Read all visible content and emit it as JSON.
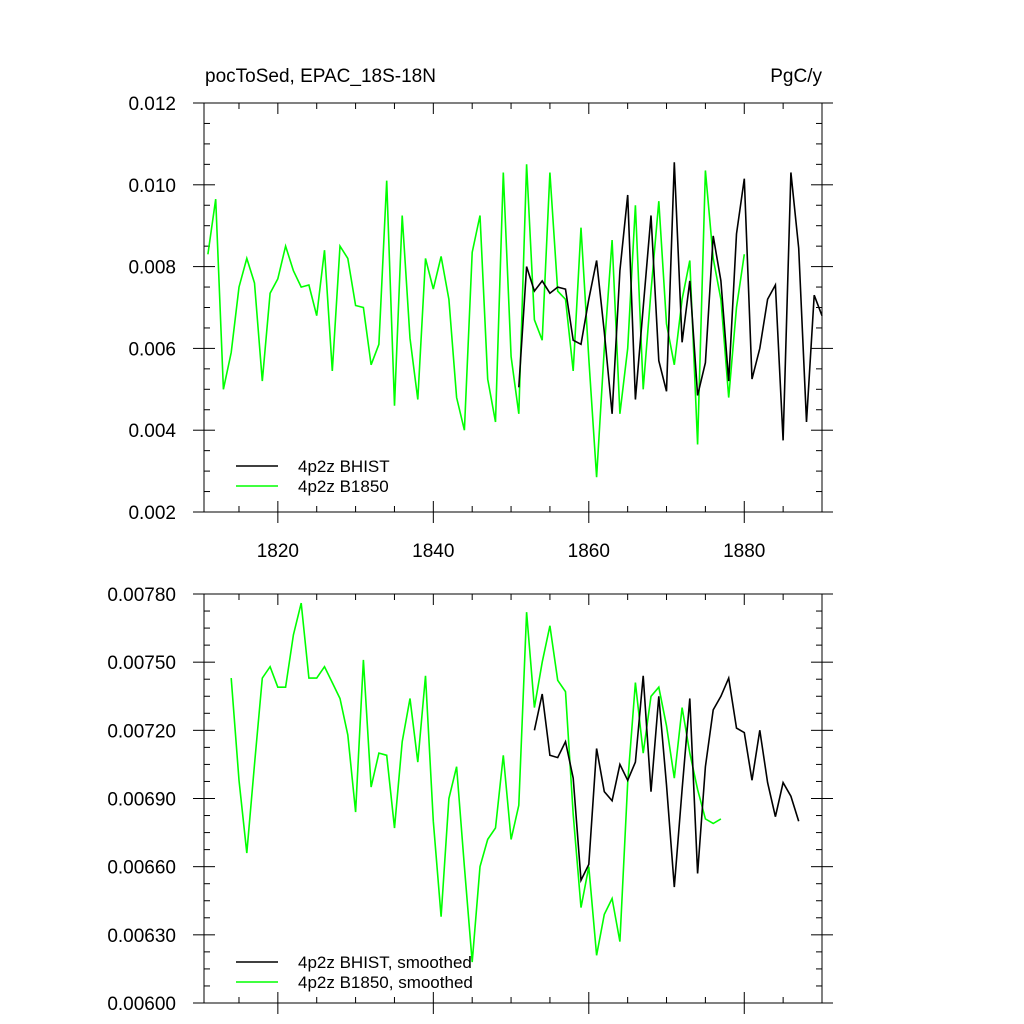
{
  "chart_data": [
    {
      "type": "line",
      "title_left": "pocToSed, EPAC_18S-18N",
      "title_right": "PgC/y",
      "xlim": [
        1810.5,
        1890
      ],
      "ylim": [
        0.002,
        0.012
      ],
      "xticks": [
        1820,
        1840,
        1860,
        1880
      ],
      "xtick_labels": [
        "1820",
        "1840",
        "1860",
        "1880"
      ],
      "yticks": [
        0.002,
        0.004,
        0.006,
        0.008,
        0.01,
        0.012
      ],
      "ytick_labels": [
        "0.002",
        "0.004",
        "0.006",
        "0.008",
        "0.010",
        "0.012"
      ],
      "legend": "bottom-left",
      "series": [
        {
          "name": "4p2z BHIST",
          "color": "#000000",
          "x": [
            1851,
            1852,
            1853,
            1854,
            1855,
            1856,
            1857,
            1858,
            1859,
            1860,
            1861,
            1862,
            1863,
            1864,
            1865,
            1866,
            1867,
            1868,
            1869,
            1870,
            1871,
            1872,
            1873,
            1874,
            1875,
            1876,
            1877,
            1878,
            1879,
            1880,
            1881,
            1882,
            1883,
            1884,
            1885,
            1886,
            1887,
            1888,
            1889,
            1890
          ],
          "y": [
            0.00505,
            0.008,
            0.0074,
            0.00765,
            0.00735,
            0.0075,
            0.00745,
            0.0062,
            0.0061,
            0.0072,
            0.00815,
            0.0064,
            0.0044,
            0.0079,
            0.00975,
            0.00475,
            0.007,
            0.00925,
            0.0057,
            0.00495,
            0.01055,
            0.00615,
            0.00765,
            0.00485,
            0.00565,
            0.00875,
            0.00765,
            0.0052,
            0.0088,
            0.01015,
            0.00525,
            0.006,
            0.0072,
            0.00755,
            0.00375,
            0.0103,
            0.00845,
            0.0042,
            0.0073,
            0.0068
          ]
        },
        {
          "name": "4p2z B1850",
          "color": "#00ff00",
          "x": [
            1811,
            1812,
            1813,
            1814,
            1815,
            1816,
            1817,
            1818,
            1819,
            1820,
            1821,
            1822,
            1823,
            1824,
            1825,
            1826,
            1827,
            1828,
            1829,
            1830,
            1831,
            1832,
            1833,
            1834,
            1835,
            1836,
            1837,
            1838,
            1839,
            1840,
            1841,
            1842,
            1843,
            1844,
            1845,
            1846,
            1847,
            1848,
            1849,
            1850,
            1851,
            1852,
            1853,
            1854,
            1855,
            1856,
            1857,
            1858,
            1859,
            1860,
            1861,
            1862,
            1863,
            1864,
            1865,
            1866,
            1867,
            1868,
            1869,
            1870,
            1871,
            1872,
            1873,
            1874,
            1875,
            1876,
            1877,
            1878,
            1879,
            1880
          ],
          "y": [
            0.0083,
            0.00965,
            0.005,
            0.0059,
            0.0075,
            0.0082,
            0.0076,
            0.0052,
            0.00735,
            0.0077,
            0.0085,
            0.0079,
            0.0075,
            0.00755,
            0.0068,
            0.0084,
            0.00545,
            0.0085,
            0.0082,
            0.00705,
            0.007,
            0.0056,
            0.0061,
            0.0101,
            0.0046,
            0.00925,
            0.00625,
            0.00475,
            0.0082,
            0.00745,
            0.00825,
            0.0072,
            0.0048,
            0.004,
            0.00835,
            0.00925,
            0.00525,
            0.0042,
            0.0103,
            0.0058,
            0.0044,
            0.0105,
            0.0067,
            0.0062,
            0.0103,
            0.0074,
            0.0072,
            0.00545,
            0.00895,
            0.00575,
            0.00285,
            0.006,
            0.00865,
            0.0044,
            0.006,
            0.0095,
            0.005,
            0.0074,
            0.0096,
            0.0066,
            0.0056,
            0.0072,
            0.00815,
            0.00365,
            0.01035,
            0.0082,
            0.0072,
            0.0048,
            0.007,
            0.0083
          ]
        }
      ]
    },
    {
      "type": "line",
      "xlim": [
        1810.5,
        1890
      ],
      "ylim": [
        0.006,
        0.0078
      ],
      "xticks": [
        1820,
        1840,
        1860,
        1880
      ],
      "yticks": [
        0.006,
        0.0063,
        0.0066,
        0.0069,
        0.0072,
        0.0075,
        0.0078
      ],
      "ytick_labels": [
        "0.00600",
        "0.00630",
        "0.00660",
        "0.00690",
        "0.00720",
        "0.00750",
        "0.00780"
      ],
      "legend": "bottom-left",
      "series": [
        {
          "name": "4p2z BHIST, smoothed",
          "color": "#000000",
          "x": [
            1853,
            1854,
            1855,
            1856,
            1857,
            1858,
            1859,
            1860,
            1861,
            1862,
            1863,
            1864,
            1865,
            1866,
            1867,
            1868,
            1869,
            1870,
            1871,
            1872,
            1873,
            1874,
            1875,
            1876,
            1877,
            1878,
            1879,
            1880,
            1881,
            1882,
            1883,
            1884,
            1885,
            1886,
            1887
          ],
          "y": [
            0.0072,
            0.00736,
            0.00709,
            0.00708,
            0.00715,
            0.00699,
            0.00654,
            0.00661,
            0.00712,
            0.00693,
            0.00689,
            0.00705,
            0.00698,
            0.00706,
            0.00744,
            0.00693,
            0.00735,
            0.00696,
            0.00651,
            0.00694,
            0.00734,
            0.00657,
            0.00704,
            0.00729,
            0.00735,
            0.00743,
            0.00721,
            0.00719,
            0.00698,
            0.0072,
            0.00697,
            0.00682,
            0.00697,
            0.00691,
            0.0068
          ]
        },
        {
          "name": "4p2z B1850, smoothed",
          "color": "#00ff00",
          "x": [
            1814,
            1815,
            1816,
            1817,
            1818,
            1819,
            1820,
            1821,
            1822,
            1823,
            1824,
            1825,
            1826,
            1827,
            1828,
            1829,
            1830,
            1831,
            1832,
            1833,
            1834,
            1835,
            1836,
            1837,
            1838,
            1839,
            1840,
            1841,
            1842,
            1843,
            1844,
            1845,
            1846,
            1847,
            1848,
            1849,
            1850,
            1851,
            1852,
            1853,
            1854,
            1855,
            1856,
            1857,
            1858,
            1859,
            1860,
            1861,
            1862,
            1863,
            1864,
            1865,
            1866,
            1867,
            1868,
            1869,
            1870,
            1871,
            1872,
            1873,
            1874,
            1875,
            1876,
            1877
          ],
          "y": [
            0.00743,
            0.00698,
            0.00666,
            0.00705,
            0.00743,
            0.00748,
            0.00739,
            0.00739,
            0.00762,
            0.00776,
            0.00743,
            0.00743,
            0.00748,
            0.00741,
            0.00734,
            0.00718,
            0.00684,
            0.00751,
            0.00695,
            0.0071,
            0.00709,
            0.00677,
            0.00715,
            0.00734,
            0.00706,
            0.00744,
            0.0068,
            0.00638,
            0.0069,
            0.00704,
            0.0066,
            0.00618,
            0.0066,
            0.00672,
            0.00677,
            0.00709,
            0.00672,
            0.00687,
            0.00772,
            0.0073,
            0.0075,
            0.00766,
            0.00742,
            0.00737,
            0.00683,
            0.00642,
            0.0066,
            0.00621,
            0.00639,
            0.00646,
            0.00627,
            0.00697,
            0.00741,
            0.0071,
            0.00735,
            0.00739,
            0.00722,
            0.00699,
            0.0073,
            0.0071,
            0.00694,
            0.00681,
            0.00679,
            0.00681
          ]
        }
      ]
    }
  ]
}
